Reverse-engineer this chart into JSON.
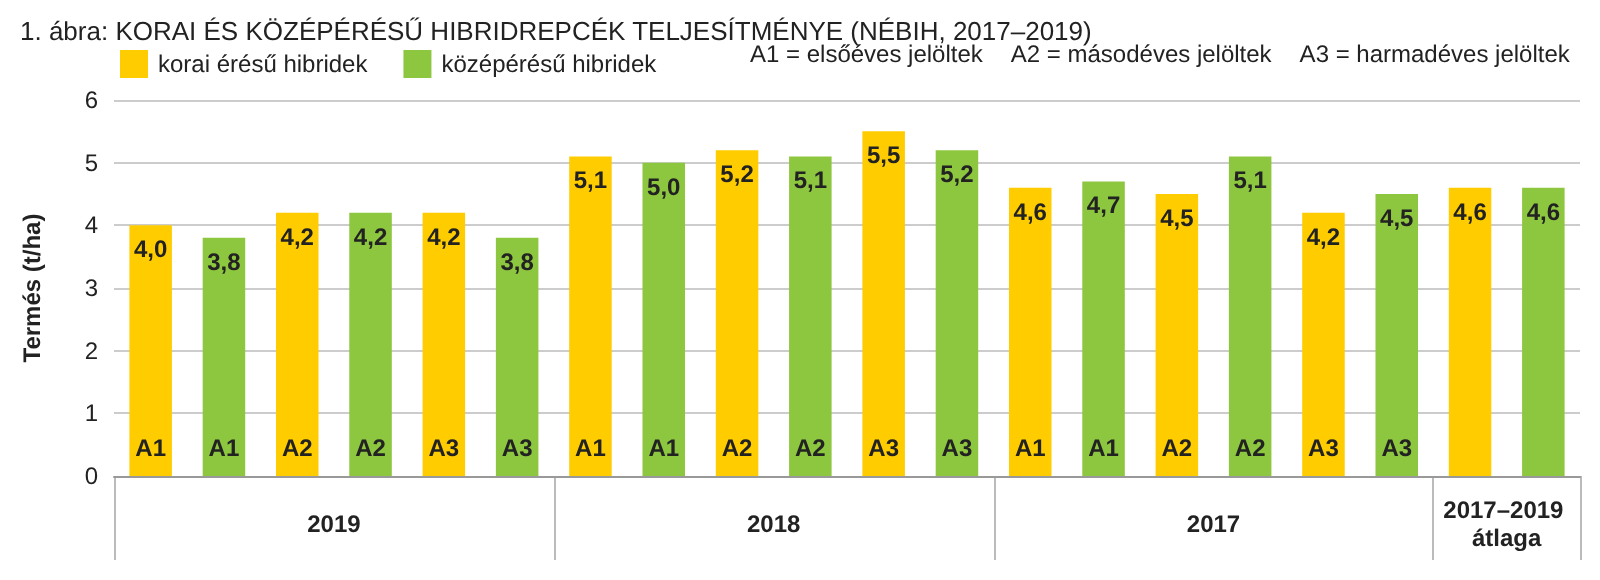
{
  "chart_data": {
    "type": "bar",
    "title": "1. ábra: KORAI ÉS KÖZÉPÉRÉSŰ HIBRIDREPCÉK TELJESÍTMÉNYE (NÉBIH, 2017–2019)",
    "ylabel": "Termés (t/ha)",
    "categories": [
      "A1",
      "A1",
      "A2",
      "A2",
      "A3",
      "A3",
      "A1",
      "A1",
      "A2",
      "A2",
      "A3",
      "A3",
      "A1",
      "A1",
      "A2",
      "A2",
      "A3",
      "A3",
      null,
      null
    ],
    "series": [
      {
        "name": "korai érésű hibridek",
        "color": "#ffcc00",
        "values": [
          4.0,
          null,
          4.2,
          null,
          4.2,
          null,
          5.1,
          null,
          5.2,
          null,
          5.5,
          null,
          4.6,
          null,
          4.5,
          null,
          4.2,
          null,
          4.6,
          null
        ],
        "value_labels": [
          "4,0",
          null,
          "4,2",
          null,
          "4,2",
          null,
          "5,1",
          null,
          "5,2",
          null,
          "5,5",
          null,
          "4,6",
          null,
          "4,5",
          null,
          "4,2",
          null,
          "4,6",
          null
        ]
      },
      {
        "name": "középérésű hibridek",
        "color": "#8dc63f",
        "values": [
          null,
          3.8,
          null,
          4.2,
          null,
          3.8,
          null,
          5.0,
          null,
          5.1,
          null,
          5.2,
          null,
          4.7,
          null,
          5.1,
          null,
          4.5,
          null,
          4.6
        ],
        "value_labels": [
          null,
          "3,8",
          null,
          "4,2",
          null,
          "3,8",
          null,
          "5,0",
          null,
          "5,1",
          null,
          "5,2",
          null,
          "4,7",
          null,
          "5,1",
          null,
          "4,5",
          null,
          "4,6"
        ]
      }
    ],
    "annotations": [
      "A1 = elsőéves jelöltek",
      "A2 = másodéves jelöltek",
      "A3 = harmadéves jelöltek",
      "2019",
      "2018",
      "2017",
      "2017–2019 átlaga"
    ],
    "ylim": [
      0,
      6
    ],
    "yticks": [
      0,
      1,
      2,
      3,
      4,
      5,
      6
    ],
    "grid": "y",
    "legend": "top left"
  }
}
